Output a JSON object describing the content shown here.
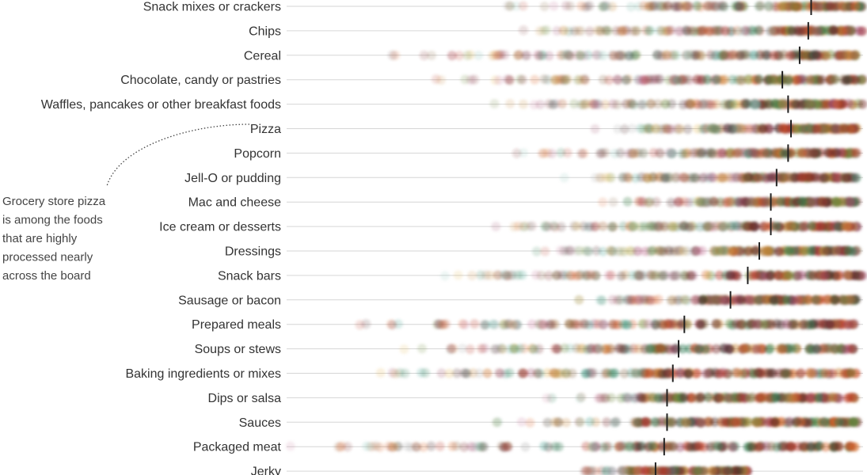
{
  "chart_data": {
    "type": "scatter",
    "categories": [
      "Snack mixes or crackers",
      "Chips",
      "Cereal",
      "Chocolate, candy or pastries",
      "Waffles, pancakes or other breakfast foods",
      "Pizza",
      "Popcorn",
      "Jell-O or pudding",
      "Mac and cheese",
      "Ice cream or desserts",
      "Dressings",
      "Snack bars",
      "Sausage or bacon",
      "Prepared meals",
      "Soups or stews",
      "Baking ingredients or mixes",
      "Dips or salsa",
      "Sauces",
      "Packaged meat",
      "Jerky"
    ],
    "medians": [
      0.91,
      0.905,
      0.89,
      0.86,
      0.87,
      0.875,
      0.87,
      0.85,
      0.84,
      0.84,
      0.82,
      0.8,
      0.77,
      0.69,
      0.68,
      0.67,
      0.66,
      0.66,
      0.655,
      0.64
    ],
    "ranges": [
      [
        0.35,
        1.0
      ],
      [
        0.4,
        1.0
      ],
      [
        0.15,
        1.0
      ],
      [
        0.22,
        1.0
      ],
      [
        0.34,
        1.0
      ],
      [
        0.5,
        0.99
      ],
      [
        0.38,
        0.99
      ],
      [
        0.46,
        0.99
      ],
      [
        0.53,
        0.99
      ],
      [
        0.35,
        0.99
      ],
      [
        0.41,
        0.99
      ],
      [
        0.26,
        1.0
      ],
      [
        0.48,
        0.99
      ],
      [
        0.06,
        0.99
      ],
      [
        0.17,
        0.99
      ],
      [
        0.09,
        0.99
      ],
      [
        0.43,
        0.99
      ],
      [
        0.34,
        0.99
      ],
      [
        0.0,
        0.99
      ],
      [
        0.49,
        0.8
      ]
    ],
    "xlim": [
      0,
      1
    ],
    "grid": false,
    "annotation": {
      "target": "Pizza",
      "text": [
        "Grocery store pizza",
        "is among the foods",
        "that are highly",
        "processed nearly",
        "across the board"
      ]
    },
    "palette": [
      "#7a2b2b",
      "#4a2a2a",
      "#b83a2a",
      "#d9642a",
      "#c98a3a",
      "#e3b24a",
      "#6e8a3a",
      "#2f7a52",
      "#3a9a8a",
      "#8fc4b8",
      "#c77a9a",
      "#9a4a6a",
      "#8a6a4a",
      "#a8a8a8"
    ],
    "median_color": "#222222"
  }
}
